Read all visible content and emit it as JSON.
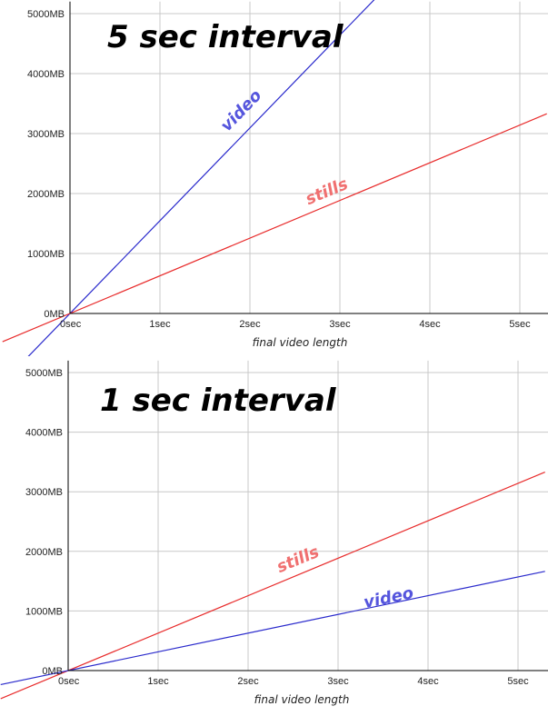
{
  "chart_data": [
    {
      "type": "line",
      "title": "5 sec interval",
      "xlabel": "final video length",
      "ylabel": "",
      "xlim": [
        0,
        5.3
      ],
      "ylim": [
        0,
        5200
      ],
      "x_ticks": [
        "0sec",
        "1sec",
        "2sec",
        "3sec",
        "4sec",
        "5sec"
      ],
      "y_ticks": [
        "0MB",
        "1000MB",
        "2000MB",
        "3000MB",
        "4000MB",
        "5000MB"
      ],
      "grid": true,
      "series": [
        {
          "name": "video",
          "color": "#2a2acc",
          "label_color": "#5555dd",
          "x": [
            0,
            5.3
          ],
          "y": [
            0,
            8200
          ],
          "label_at": [
            1.75,
            3020
          ]
        },
        {
          "name": "stills",
          "color": "#e82c2c",
          "label_color": "#f07070",
          "x": [
            0,
            5.3
          ],
          "y": [
            0,
            3330
          ],
          "label_at": [
            2.65,
            1810
          ]
        }
      ]
    },
    {
      "type": "line",
      "title": "1 sec interval",
      "xlabel": "final video length",
      "ylabel": "",
      "xlim": [
        0,
        5.3
      ],
      "ylim": [
        0,
        5200
      ],
      "x_ticks": [
        "0sec",
        "1sec",
        "2sec",
        "3sec",
        "4sec",
        "5sec"
      ],
      "y_ticks": [
        "0MB",
        "1000MB",
        "2000MB",
        "3000MB",
        "4000MB",
        "5000MB"
      ],
      "grid": true,
      "series": [
        {
          "name": "stills",
          "color": "#e82c2c",
          "label_color": "#f07070",
          "x": [
            0,
            5.3
          ],
          "y": [
            0,
            3330
          ],
          "label_at": [
            2.35,
            1640
          ]
        },
        {
          "name": "video",
          "color": "#2a2acc",
          "label_color": "#5555dd",
          "x": [
            0,
            5.3
          ],
          "y": [
            0,
            1665
          ],
          "label_at": [
            3.3,
            1050
          ]
        }
      ]
    }
  ]
}
